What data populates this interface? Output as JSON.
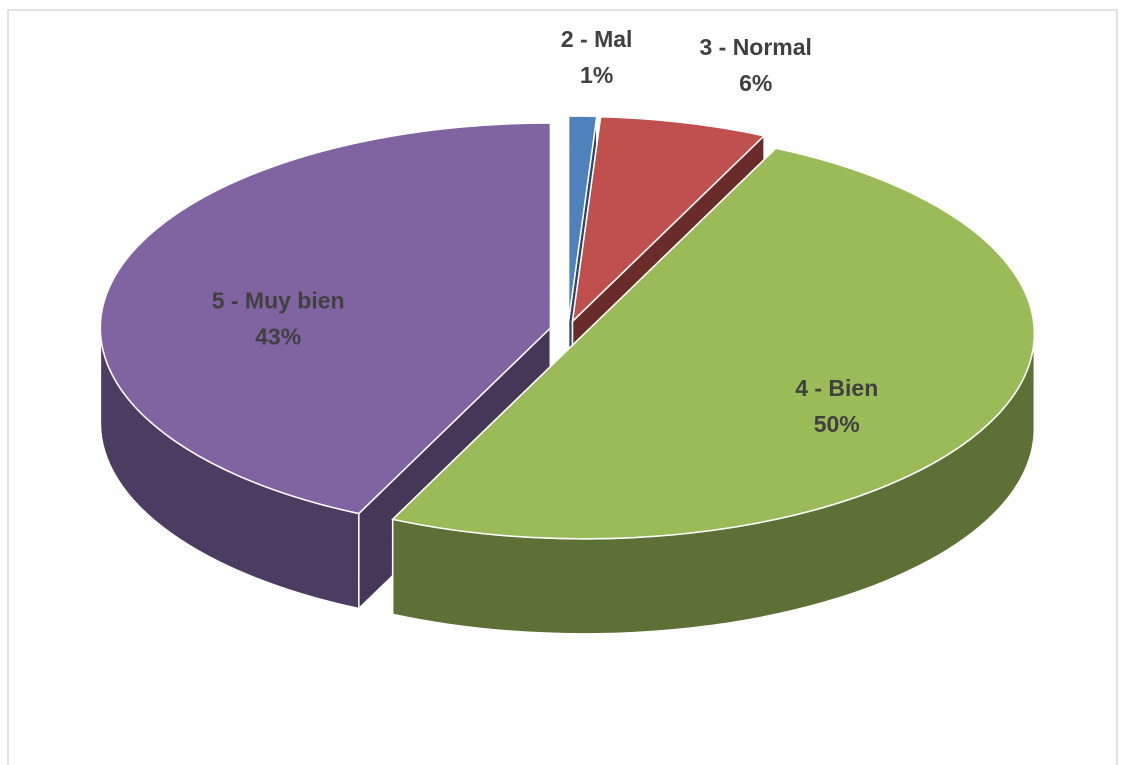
{
  "chart_data": {
    "type": "pie3d",
    "categories": [
      "2 - Mal",
      "3 - Normal",
      "4 - Bien",
      "5 - Muy bien"
    ],
    "values": [
      1,
      6,
      50,
      43
    ],
    "value_labels": [
      "1%",
      "6%",
      "50%",
      "43%"
    ],
    "colors": [
      "#4f81bd",
      "#c0504d",
      "#9bbb59",
      "#8064a2"
    ]
  }
}
